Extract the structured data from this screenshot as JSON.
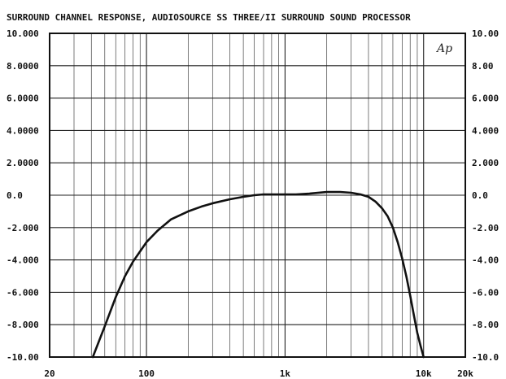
{
  "chart_data": {
    "type": "line",
    "title": "SURROUND CHANNEL RESPONSE, AUDIOSOURCE SS THREE/II SURROUND SOUND PROCESSOR",
    "logo_text": "Ap",
    "x_scale": "log",
    "xlim": [
      20,
      20000
    ],
    "ylim": [
      -10,
      10
    ],
    "grid": true,
    "x_ticks": [
      {
        "value": 20,
        "label": "20"
      },
      {
        "value": 100,
        "label": "100"
      },
      {
        "value": 1000,
        "label": "1k"
      },
      {
        "value": 10000,
        "label": "10k"
      },
      {
        "value": 20000,
        "label": "20k"
      }
    ],
    "y_ticks_left": [
      {
        "value": 10,
        "label": "10.000"
      },
      {
        "value": 8,
        "label": "8.0000"
      },
      {
        "value": 6,
        "label": "6.0000"
      },
      {
        "value": 4,
        "label": "4.0000"
      },
      {
        "value": 2,
        "label": "2.0000"
      },
      {
        "value": 0,
        "label": "0.0"
      },
      {
        "value": -2,
        "label": "-2.000"
      },
      {
        "value": -4,
        "label": "-4.000"
      },
      {
        "value": -6,
        "label": "-6.000"
      },
      {
        "value": -8,
        "label": "-8.000"
      },
      {
        "value": -10,
        "label": "-10.00"
      }
    ],
    "y_ticks_right": [
      {
        "value": 10,
        "label": "10.00"
      },
      {
        "value": 8,
        "label": "8.00"
      },
      {
        "value": 6,
        "label": "6.000"
      },
      {
        "value": 4,
        "label": "4.000"
      },
      {
        "value": 2,
        "label": "2.000"
      },
      {
        "value": 0,
        "label": "0.0"
      },
      {
        "value": -2,
        "label": "-2.00"
      },
      {
        "value": -4,
        "label": "-4.00"
      },
      {
        "value": -6,
        "label": "-6.00"
      },
      {
        "value": -8,
        "label": "-8.00"
      },
      {
        "value": -10,
        "label": "-10.0"
      }
    ],
    "series": [
      {
        "color": "#111111",
        "x": [
          41,
          50,
          60,
          70,
          80,
          100,
          120,
          150,
          200,
          250,
          300,
          400,
          500,
          600,
          700,
          800,
          1000,
          1200,
          1500,
          2000,
          2500,
          3000,
          3500,
          4000,
          4500,
          5000,
          5500,
          6000,
          6500,
          7000,
          7500,
          8000,
          8500,
          9000,
          9500,
          10000
        ],
        "y": [
          -10.0,
          -8.1,
          -6.3,
          -5.0,
          -4.1,
          -2.9,
          -2.2,
          -1.5,
          -1.0,
          -0.7,
          -0.5,
          -0.25,
          -0.1,
          0.0,
          0.05,
          0.05,
          0.05,
          0.05,
          0.1,
          0.2,
          0.2,
          0.15,
          0.05,
          -0.1,
          -0.4,
          -0.8,
          -1.3,
          -2.0,
          -2.9,
          -3.9,
          -5.0,
          -6.2,
          -7.4,
          -8.5,
          -9.3,
          -10.0
        ]
      }
    ]
  }
}
